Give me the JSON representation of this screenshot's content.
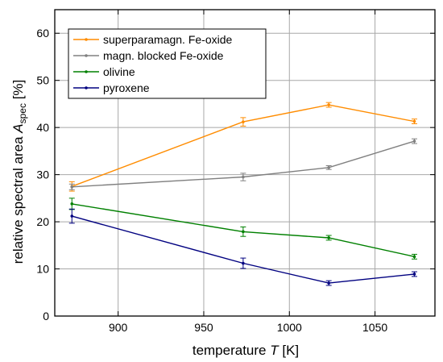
{
  "chart_data": {
    "type": "line",
    "xlabel_prefix": "temperature ",
    "xlabel_var": "T",
    "xlabel_unit": " [K]",
    "ylabel_prefix": "relative spectral area ",
    "ylabel_var": "A",
    "ylabel_sub": "spec",
    "ylabel_unit": " [%]",
    "xlim": [
      863,
      1085
    ],
    "ylim": [
      0,
      65
    ],
    "xticks": [
      900,
      950,
      1000,
      1050
    ],
    "yticks": [
      0,
      10,
      20,
      30,
      40,
      50,
      60
    ],
    "grid": true,
    "legend_position": "top-left",
    "x": [
      873,
      973,
      1023,
      1073
    ],
    "series": [
      {
        "name": "superparamagn. Fe-oxide",
        "color": "#FF8C00",
        "values": [
          27.5,
          41.2,
          44.8,
          41.3
        ],
        "errors": [
          1.0,
          0.9,
          0.5,
          0.5
        ]
      },
      {
        "name": "magn. blocked Fe-oxide",
        "color": "#808080",
        "values": [
          27.4,
          29.5,
          31.5,
          37.1
        ],
        "errors": [
          0.6,
          0.8,
          0.4,
          0.5
        ]
      },
      {
        "name": "olivine",
        "color": "#008000",
        "values": [
          23.8,
          17.9,
          16.6,
          12.6
        ],
        "errors": [
          1.2,
          1.0,
          0.5,
          0.5
        ]
      },
      {
        "name": "pyroxene",
        "color": "#000080",
        "values": [
          21.2,
          11.2,
          7.0,
          8.9
        ],
        "errors": [
          1.5,
          1.1,
          0.5,
          0.5
        ]
      }
    ]
  }
}
